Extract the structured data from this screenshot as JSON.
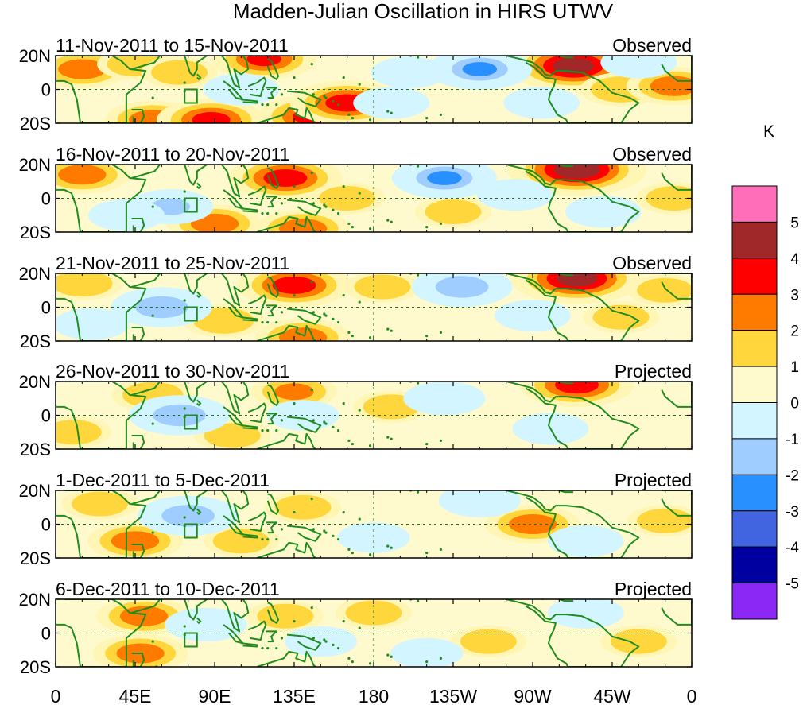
{
  "chart_data": {
    "type": "heatmap",
    "title": "Madden-Julian Oscillation in HIRS UTWV",
    "unit": "K",
    "x_ticks": [
      "0",
      "45E",
      "90E",
      "135E",
      "180",
      "135W",
      "90W",
      "45W",
      "0"
    ],
    "x_values": [
      0,
      45,
      90,
      135,
      180,
      225,
      270,
      315,
      360
    ],
    "y_ticks": [
      "20N",
      "0",
      "20S"
    ],
    "y_values": [
      20,
      0,
      -20
    ],
    "xlim": [
      0,
      360
    ],
    "ylim": [
      -20,
      20
    ],
    "colorbar": {
      "labels": [
        "5",
        "4",
        "3",
        "2",
        "1",
        "0",
        "-1",
        "-2",
        "-3",
        "-4",
        "-5"
      ],
      "colors": [
        "#ff6eb8",
        "#a02828",
        "#ff0000",
        "#ff7b00",
        "#ffd73c",
        "#fffacd",
        "#d2f5ff",
        "#a0cdff",
        "#2891ff",
        "#4164e1",
        "#0000a0",
        "#8c28f5"
      ]
    },
    "panels": [
      {
        "period": "11-Nov-2011 to 15-Nov-2011",
        "status": "Observed",
        "anomalies": [
          {
            "lon": 15,
            "lat": 12,
            "value": 2.5
          },
          {
            "lon": 45,
            "lat": 15,
            "value": 1.5
          },
          {
            "lon": 55,
            "lat": -18,
            "value": 2.5
          },
          {
            "lon": 88,
            "lat": -18,
            "value": 3.2
          },
          {
            "lon": 145,
            "lat": -16,
            "value": 3.2
          },
          {
            "lon": 165,
            "lat": -8,
            "value": 3.5
          },
          {
            "lon": 118,
            "lat": 18,
            "value": 3.0
          },
          {
            "lon": 70,
            "lat": 10,
            "value": 1.5
          },
          {
            "lon": 293,
            "lat": 14,
            "value": 4.5
          },
          {
            "lon": 320,
            "lat": 0,
            "value": 1.8
          },
          {
            "lon": 350,
            "lat": 2,
            "value": 2.5
          },
          {
            "lon": 240,
            "lat": 12,
            "value": -3.0
          },
          {
            "lon": 105,
            "lat": 0,
            "value": -1.5
          },
          {
            "lon": 200,
            "lat": 10,
            "value": -1.5
          },
          {
            "lon": 190,
            "lat": -8,
            "value": -1.5
          },
          {
            "lon": 275,
            "lat": -8,
            "value": -1.5
          },
          {
            "lon": 330,
            "lat": 16,
            "value": -1.5
          }
        ]
      },
      {
        "period": "16-Nov-2011 to 20-Nov-2011",
        "status": "Observed",
        "anomalies": [
          {
            "lon": 15,
            "lat": 14,
            "value": 2.5
          },
          {
            "lon": 130,
            "lat": 12,
            "value": 3.5
          },
          {
            "lon": 295,
            "lat": 17,
            "value": 4.8
          },
          {
            "lon": 90,
            "lat": -15,
            "value": 2.5
          },
          {
            "lon": 140,
            "lat": -18,
            "value": 2.5
          },
          {
            "lon": 165,
            "lat": 0,
            "value": 1.5
          },
          {
            "lon": 225,
            "lat": -8,
            "value": 1.5
          },
          {
            "lon": 350,
            "lat": 0,
            "value": 1.5
          },
          {
            "lon": 220,
            "lat": 12,
            "value": -3.0
          },
          {
            "lon": 65,
            "lat": -5,
            "value": -2.0
          },
          {
            "lon": 40,
            "lat": -10,
            "value": -1.5
          },
          {
            "lon": 260,
            "lat": 2,
            "value": -1.5
          },
          {
            "lon": 310,
            "lat": -8,
            "value": -1.5
          }
        ]
      },
      {
        "period": "21-Nov-2011 to 25-Nov-2011",
        "status": "Observed",
        "anomalies": [
          {
            "lon": 135,
            "lat": 13,
            "value": 3.5
          },
          {
            "lon": 295,
            "lat": 17,
            "value": 4.5
          },
          {
            "lon": 15,
            "lat": 14,
            "value": 1.8
          },
          {
            "lon": 95,
            "lat": -8,
            "value": 1.8
          },
          {
            "lon": 140,
            "lat": -18,
            "value": 2.5
          },
          {
            "lon": 185,
            "lat": 12,
            "value": 1.5
          },
          {
            "lon": 320,
            "lat": -6,
            "value": 1.5
          },
          {
            "lon": 345,
            "lat": 10,
            "value": 1.5
          },
          {
            "lon": 60,
            "lat": 0,
            "value": -2.8
          },
          {
            "lon": 230,
            "lat": 12,
            "value": -2.8
          },
          {
            "lon": 20,
            "lat": -10,
            "value": -1.5
          },
          {
            "lon": 270,
            "lat": -5,
            "value": -1.5
          }
        ]
      },
      {
        "period": "26-Nov-2011 to 30-Nov-2011",
        "status": "Projected",
        "anomalies": [
          {
            "lon": 55,
            "lat": 12,
            "value": 1.8
          },
          {
            "lon": 135,
            "lat": 14,
            "value": 2.0
          },
          {
            "lon": 295,
            "lat": 18,
            "value": 3.5
          },
          {
            "lon": 10,
            "lat": -10,
            "value": 1.5
          },
          {
            "lon": 100,
            "lat": -12,
            "value": 1.5
          },
          {
            "lon": 190,
            "lat": 5,
            "value": 1.5
          },
          {
            "lon": 70,
            "lat": 0,
            "value": -2.8
          },
          {
            "lon": 220,
            "lat": 10,
            "value": -1.8
          },
          {
            "lon": 280,
            "lat": -8,
            "value": -1.5
          },
          {
            "lon": 140,
            "lat": 0,
            "value": -1.3
          }
        ]
      },
      {
        "period": "1-Dec-2011 to 5-Dec-2011",
        "status": "Projected",
        "anomalies": [
          {
            "lon": 45,
            "lat": -10,
            "value": 2.5
          },
          {
            "lon": 140,
            "lat": 10,
            "value": 1.5
          },
          {
            "lon": 270,
            "lat": 0,
            "value": 2.5
          },
          {
            "lon": 25,
            "lat": 12,
            "value": 1.5
          },
          {
            "lon": 105,
            "lat": -10,
            "value": 1.5
          },
          {
            "lon": 345,
            "lat": 2,
            "value": 1.5
          },
          {
            "lon": 75,
            "lat": 5,
            "value": -2.8
          },
          {
            "lon": 240,
            "lat": 14,
            "value": -1.8
          },
          {
            "lon": 300,
            "lat": -10,
            "value": -1.5
          },
          {
            "lon": 180,
            "lat": -8,
            "value": -1.3
          }
        ]
      },
      {
        "period": "6-Dec-2011 to 10-Dec-2011",
        "status": "Projected",
        "anomalies": [
          {
            "lon": 50,
            "lat": 10,
            "value": 2.5
          },
          {
            "lon": 48,
            "lat": -12,
            "value": 2.5
          },
          {
            "lon": 130,
            "lat": 10,
            "value": 1.5
          },
          {
            "lon": 180,
            "lat": 12,
            "value": 1.5
          },
          {
            "lon": 245,
            "lat": -5,
            "value": 1.5
          },
          {
            "lon": 330,
            "lat": -5,
            "value": 1.5
          },
          {
            "lon": 85,
            "lat": 5,
            "value": -1.8
          },
          {
            "lon": 150,
            "lat": -5,
            "value": -1.3
          },
          {
            "lon": 300,
            "lat": 12,
            "value": -1.5
          },
          {
            "lon": 210,
            "lat": -12,
            "value": -1.3
          }
        ]
      }
    ],
    "box_region": {
      "lon_min": 73,
      "lon_max": 80,
      "lat_min": -8,
      "lat_max": 0
    }
  }
}
